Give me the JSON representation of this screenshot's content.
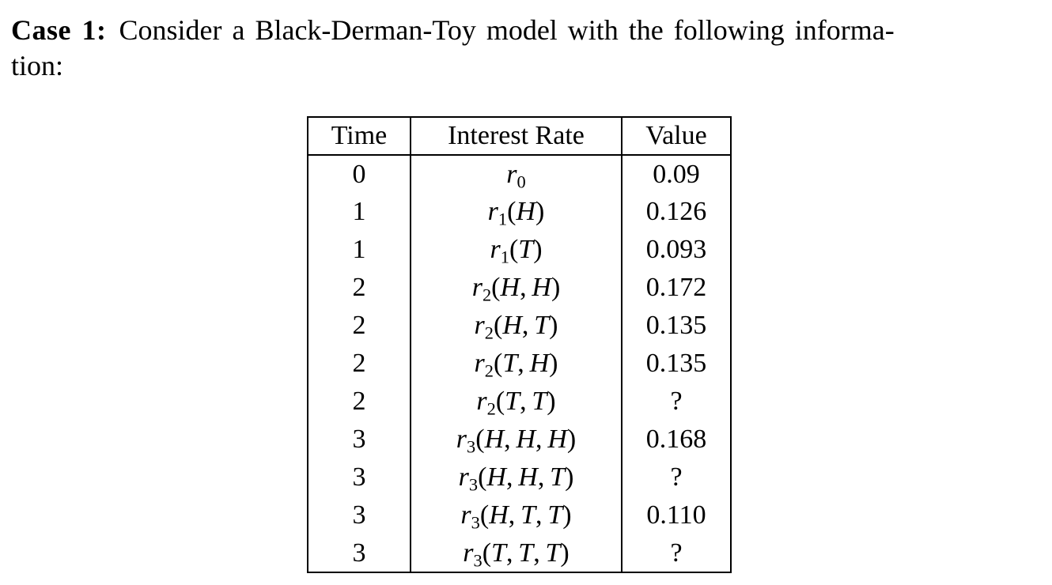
{
  "heading": {
    "label": "Case 1:",
    "line1_rest": "Consider a Black-Derman-Toy model with the following informa-",
    "line2": "tion:"
  },
  "table": {
    "headers": [
      "Time",
      "Interest Rate",
      "Value"
    ],
    "rows": [
      {
        "time": "0",
        "rate": {
          "symbol": "r",
          "sub": "0",
          "args": []
        },
        "value": "0.09"
      },
      {
        "time": "1",
        "rate": {
          "symbol": "r",
          "sub": "1",
          "args": [
            "H"
          ]
        },
        "value": "0.126"
      },
      {
        "time": "1",
        "rate": {
          "symbol": "r",
          "sub": "1",
          "args": [
            "T"
          ]
        },
        "value": "0.093"
      },
      {
        "time": "2",
        "rate": {
          "symbol": "r",
          "sub": "2",
          "args": [
            "H",
            "H"
          ]
        },
        "value": "0.172"
      },
      {
        "time": "2",
        "rate": {
          "symbol": "r",
          "sub": "2",
          "args": [
            "H",
            "T"
          ]
        },
        "value": "0.135"
      },
      {
        "time": "2",
        "rate": {
          "symbol": "r",
          "sub": "2",
          "args": [
            "T",
            "H"
          ]
        },
        "value": "0.135"
      },
      {
        "time": "2",
        "rate": {
          "symbol": "r",
          "sub": "2",
          "args": [
            "T",
            "T"
          ]
        },
        "value": "?"
      },
      {
        "time": "3",
        "rate": {
          "symbol": "r",
          "sub": "3",
          "args": [
            "H",
            "H",
            "H"
          ]
        },
        "value": "0.168"
      },
      {
        "time": "3",
        "rate": {
          "symbol": "r",
          "sub": "3",
          "args": [
            "H",
            "H",
            "T"
          ]
        },
        "value": "?"
      },
      {
        "time": "3",
        "rate": {
          "symbol": "r",
          "sub": "3",
          "args": [
            "H",
            "T",
            "T"
          ]
        },
        "value": "0.110"
      },
      {
        "time": "3",
        "rate": {
          "symbol": "r",
          "sub": "3",
          "args": [
            "T",
            "T",
            "T"
          ]
        },
        "value": "?"
      }
    ]
  },
  "colors": {
    "text": "#000000",
    "background": "#ffffff",
    "border": "#000000"
  }
}
